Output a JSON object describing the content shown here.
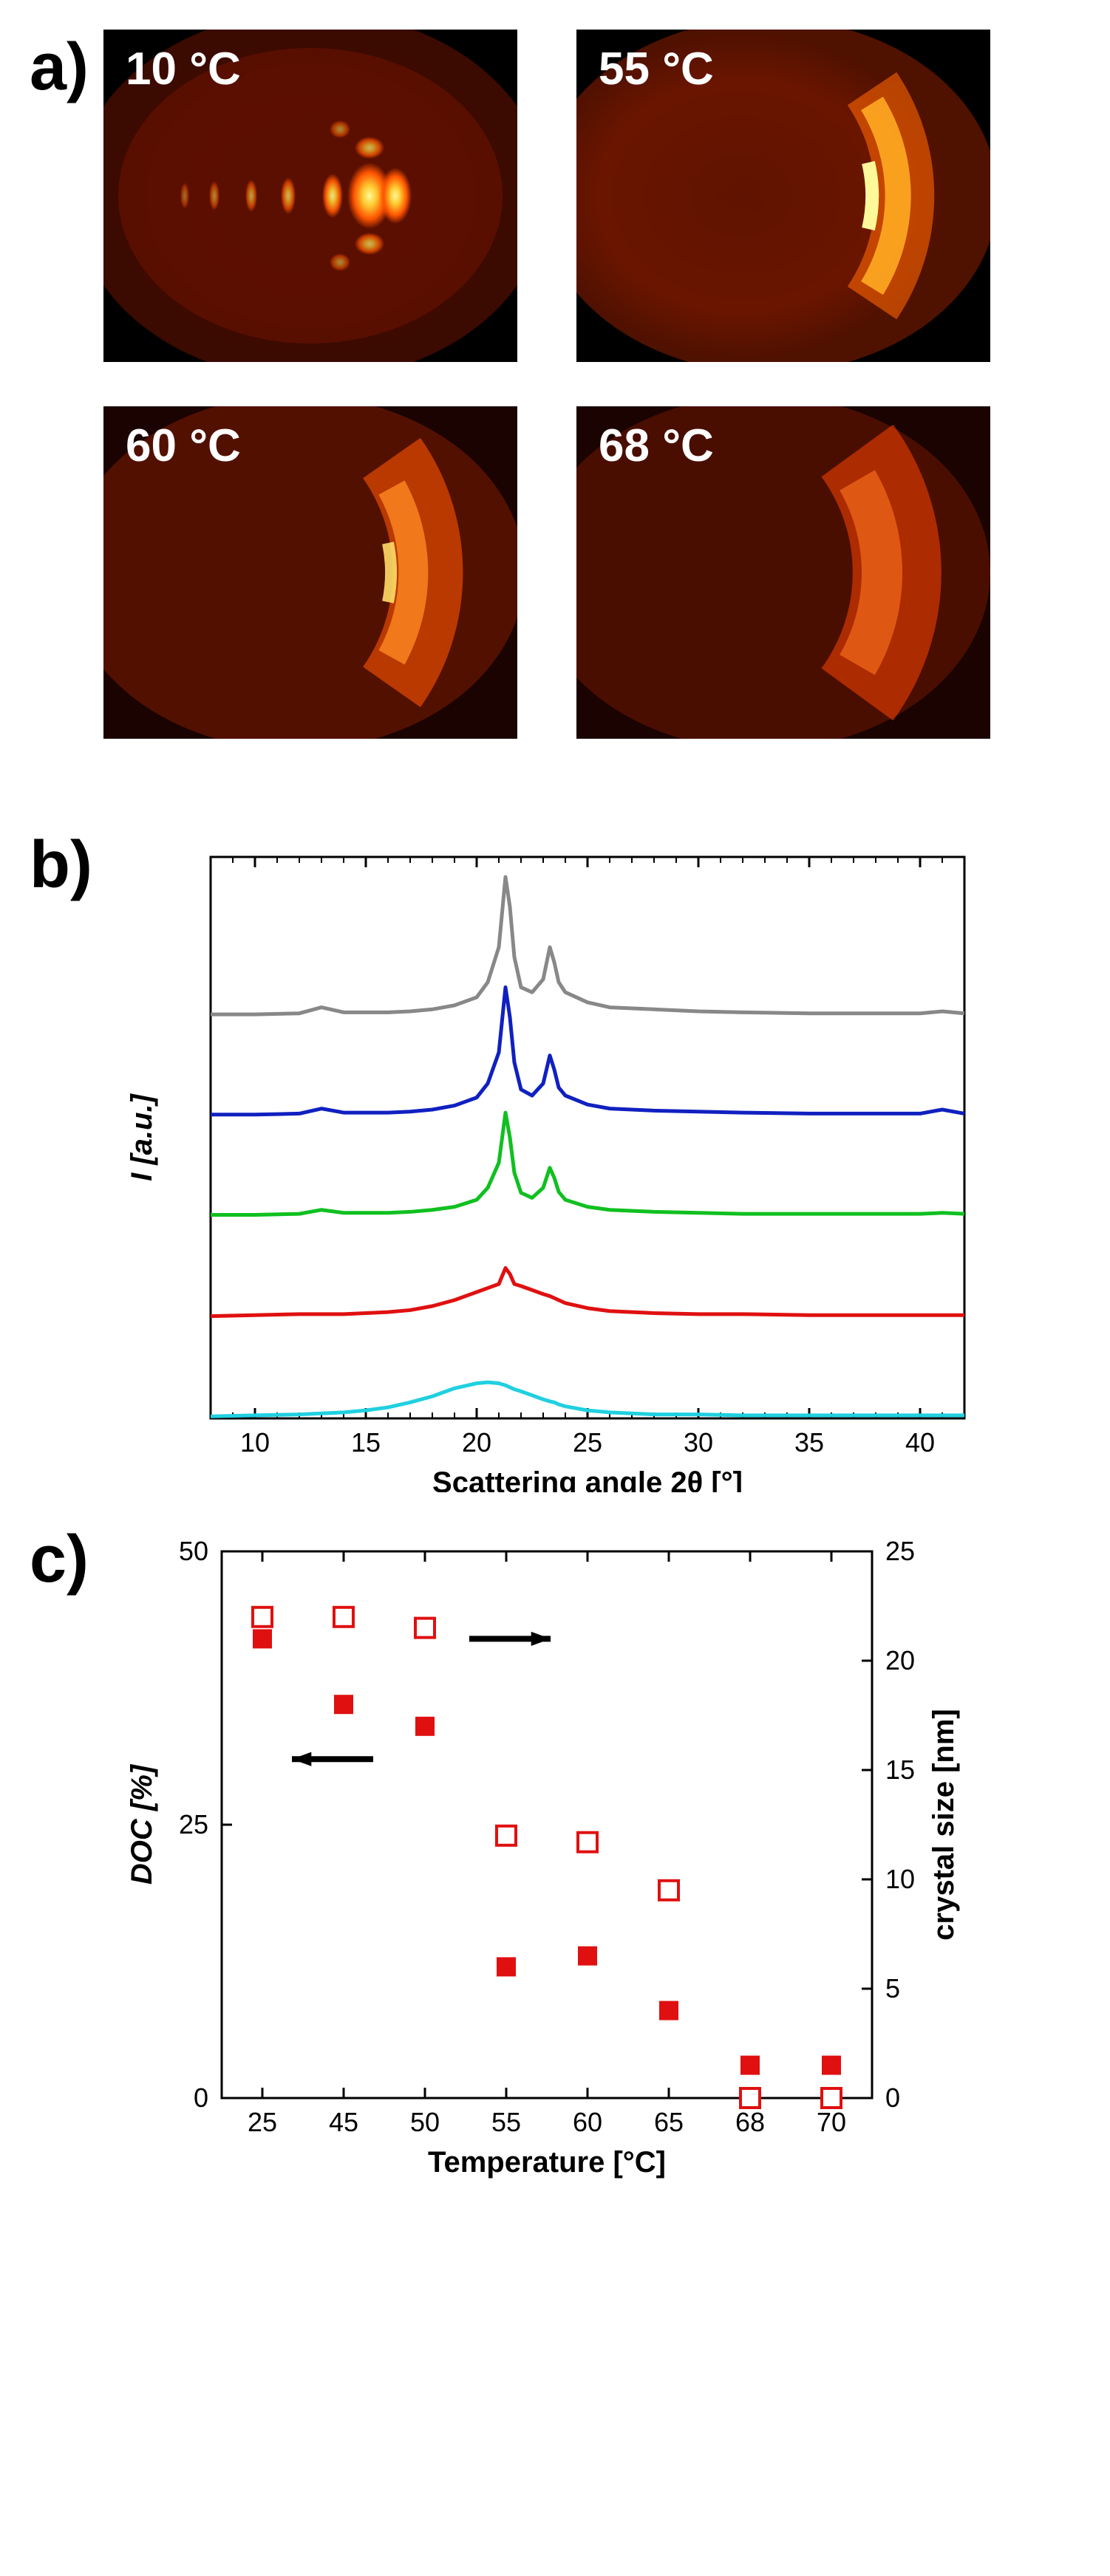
{
  "panel_a": {
    "label": "a)",
    "images": [
      {
        "temp_label": "10 °C",
        "description": "spots"
      },
      {
        "temp_label": "55 °C",
        "description": "arc"
      },
      {
        "temp_label": "60 °C",
        "description": "arc-diffuse"
      },
      {
        "temp_label": "68 °C",
        "description": "diffuse-ring"
      }
    ]
  },
  "panel_b": {
    "label": "b)",
    "xlabel": "Scattering angle 2θ [°]",
    "ylabel": "I [a.u.]",
    "xlim": [
      8,
      42
    ],
    "xticks": [
      10,
      15,
      20,
      25,
      30,
      35,
      40
    ],
    "series": [
      {
        "color": "#888888",
        "offset": 400,
        "name": "grey"
      },
      {
        "color": "#1020c0",
        "offset": 300,
        "name": "blue"
      },
      {
        "color": "#10c020",
        "offset": 200,
        "name": "green"
      },
      {
        "color": "#e01010",
        "offset": 100,
        "name": "red"
      },
      {
        "color": "#20d0e0",
        "offset": 0,
        "name": "cyan"
      }
    ],
    "profile_x": [
      8,
      10,
      12,
      13,
      14,
      15,
      16,
      17,
      18,
      19,
      20,
      20.5,
      21,
      21.3,
      21.5,
      21.7,
      22,
      22.5,
      23,
      23.3,
      23.5,
      23.7,
      24,
      25,
      26,
      28,
      30,
      32,
      35,
      38,
      40,
      41,
      42
    ],
    "profiles": {
      "grey": [
        3,
        3,
        4,
        10,
        5,
        5,
        5,
        6,
        8,
        12,
        20,
        35,
        70,
        140,
        110,
        60,
        30,
        25,
        38,
        70,
        55,
        35,
        25,
        15,
        10,
        8,
        6,
        5,
        4,
        4,
        4,
        6,
        4
      ],
      "blue": [
        3,
        3,
        4,
        9,
        5,
        5,
        5,
        6,
        8,
        12,
        20,
        34,
        65,
        130,
        100,
        55,
        28,
        22,
        34,
        62,
        48,
        30,
        22,
        13,
        9,
        7,
        6,
        5,
        4,
        4,
        4,
        8,
        4
      ],
      "green": [
        3,
        3,
        4,
        8,
        5,
        5,
        5,
        6,
        8,
        11,
        18,
        30,
        55,
        105,
        80,
        45,
        25,
        20,
        30,
        50,
        40,
        26,
        18,
        11,
        8,
        6,
        5,
        4,
        4,
        4,
        4,
        5,
        4
      ],
      "red": [
        2,
        3,
        4,
        4,
        4,
        5,
        6,
        8,
        12,
        18,
        26,
        30,
        34,
        50,
        44,
        34,
        32,
        28,
        24,
        22,
        20,
        18,
        15,
        10,
        7,
        5,
        4,
        4,
        3,
        3,
        3,
        3,
        3
      ],
      "cyan": [
        2,
        3,
        4,
        5,
        6,
        8,
        11,
        16,
        22,
        30,
        35,
        36,
        35,
        33,
        31,
        29,
        27,
        23,
        19,
        17,
        16,
        14,
        12,
        8,
        6,
        4,
        4,
        3,
        3,
        3,
        3,
        3,
        3
      ]
    }
  },
  "panel_c": {
    "label": "c)",
    "xlabel": "Temperature [°C]",
    "ylabel_left": "DOC [%]",
    "ylabel_right": "crystal size [nm]",
    "xticks": [
      25,
      45,
      50,
      55,
      60,
      65,
      68,
      70
    ],
    "yleft": {
      "min": 0,
      "max": 50,
      "ticks": [
        0,
        25,
        50
      ]
    },
    "yright": {
      "min": 0,
      "max": 25,
      "ticks": [
        0,
        5,
        10,
        15,
        20,
        25
      ]
    },
    "doc_points": [
      {
        "t": 25,
        "v": 42
      },
      {
        "t": 45,
        "v": 36
      },
      {
        "t": 50,
        "v": 34
      },
      {
        "t": 55,
        "v": 12
      },
      {
        "t": 60,
        "v": 13
      },
      {
        "t": 65,
        "v": 8
      },
      {
        "t": 68,
        "v": 3
      },
      {
        "t": 70,
        "v": 3
      }
    ],
    "crystal_points": [
      {
        "t": 25,
        "v": 22
      },
      {
        "t": 45,
        "v": 22
      },
      {
        "t": 50,
        "v": 21.5
      },
      {
        "t": 55,
        "v": 12
      },
      {
        "t": 60,
        "v": 11.7
      },
      {
        "t": 65,
        "v": 9.5
      },
      {
        "t": 68,
        "v": 0
      },
      {
        "t": 70,
        "v": 0
      }
    ],
    "colors": {
      "filled": "#e01010",
      "open": "#e01010",
      "arrow": "#000000"
    }
  }
}
